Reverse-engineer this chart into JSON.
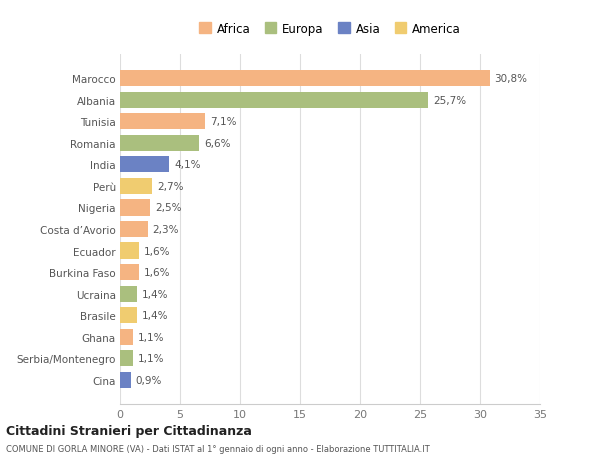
{
  "countries": [
    "Marocco",
    "Albania",
    "Tunisia",
    "Romania",
    "India",
    "Perù",
    "Nigeria",
    "Costa d’Avorio",
    "Ecuador",
    "Burkina Faso",
    "Ucraina",
    "Brasile",
    "Ghana",
    "Serbia/Montenegro",
    "Cina"
  ],
  "values": [
    30.8,
    25.7,
    7.1,
    6.6,
    4.1,
    2.7,
    2.5,
    2.3,
    1.6,
    1.6,
    1.4,
    1.4,
    1.1,
    1.1,
    0.9
  ],
  "labels": [
    "30,8%",
    "25,7%",
    "7,1%",
    "6,6%",
    "4,1%",
    "2,7%",
    "2,5%",
    "2,3%",
    "1,6%",
    "1,6%",
    "1,4%",
    "1,4%",
    "1,1%",
    "1,1%",
    "0,9%"
  ],
  "continents": [
    "Africa",
    "Europa",
    "Africa",
    "Europa",
    "Asia",
    "America",
    "Africa",
    "Africa",
    "America",
    "Africa",
    "Europa",
    "America",
    "Africa",
    "Europa",
    "Asia"
  ],
  "continent_colors": {
    "Africa": "#F5B482",
    "Europa": "#AABF7E",
    "Asia": "#6B82C4",
    "America": "#F0CC70"
  },
  "legend_order": [
    "Africa",
    "Europa",
    "Asia",
    "America"
  ],
  "legend_colors": [
    "#F5B482",
    "#AABF7E",
    "#6B82C4",
    "#F0CC70"
  ],
  "title1": "Cittadini Stranieri per Cittadinanza",
  "title2": "COMUNE DI GORLA MINORE (VA) - Dati ISTAT al 1° gennaio di ogni anno - Elaborazione TUTTITALIA.IT",
  "xlim": [
    0,
    35
  ],
  "xticks": [
    0,
    5,
    10,
    15,
    20,
    25,
    30,
    35
  ],
  "background_color": "#ffffff",
  "bar_height": 0.75
}
